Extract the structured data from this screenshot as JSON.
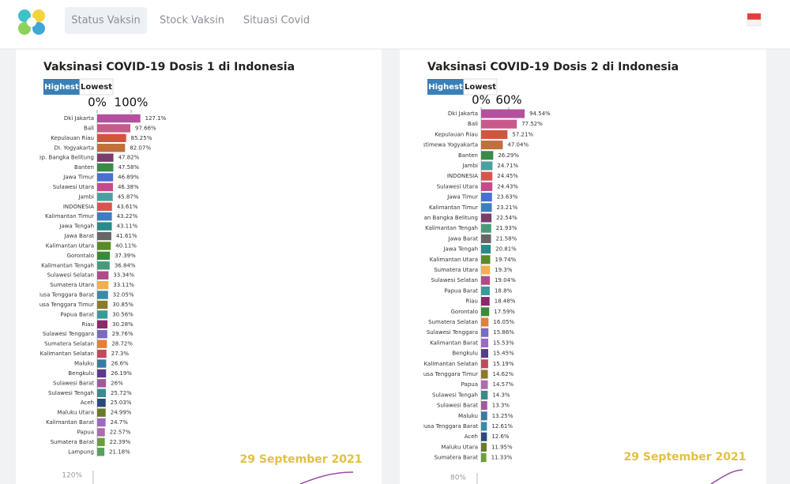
{
  "nav": {
    "items": [
      "Status Vaksin",
      "Stock Vaksin",
      "Situasi Covid"
    ]
  },
  "chart_data": [
    {
      "type": "bar",
      "orientation": "horizontal",
      "title": "Vaksinasi COVID-19 Dosis 1 di Indonesia",
      "buttons": [
        "Highest",
        "Lowest"
      ],
      "categories": [
        "Dki Jakarta",
        "Bali",
        "Kepulauan Riau",
        "DI. Yogyakarta",
        "Kep. Bangka Belitung",
        "Banten",
        "Jawa Timur",
        "Sulawesi Utara",
        "Jambi",
        "INDONESIA",
        "Kalimantan Timur",
        "Jawa Tengah",
        "Jawa Barat",
        "Kalimantan Utara",
        "Gorontalo",
        "Kalimantan Tengah",
        "Sulawesi Selatan",
        "Sumatera Utara",
        "Nusa Tenggara Barat",
        "Nusa Tenggara Timur",
        "Papua Barat",
        "Riau",
        "Sulawesi Tenggara",
        "Sumatera Selatan",
        "Kalimantan Selatan",
        "Maluku",
        "Bengkulu",
        "Sulawesi Barat",
        "Sulawesi Tengah",
        "Aceh",
        "Maluku Utara",
        "Kalimantan Barat",
        "Papua",
        "Sumatera Barat",
        "Lampung"
      ],
      "values": [
        127.1,
        97.66,
        85.25,
        82.07,
        47.82,
        47.58,
        46.89,
        46.38,
        45.87,
        43.61,
        43.22,
        43.11,
        41.61,
        40.11,
        37.39,
        36.84,
        33.34,
        33.11,
        32.05,
        30.85,
        30.56,
        30.28,
        29.76,
        28.72,
        27.3,
        26.6,
        26.19,
        26,
        25.72,
        25.03,
        24.99,
        24.7,
        22.57,
        22.39,
        21.18
      ],
      "value_labels": [
        "127.1%",
        "97.66%",
        "85.25%",
        "82.07%",
        "47.82%",
        "47.58%",
        "46.89%",
        "46.38%",
        "45.87%",
        "43.61%",
        "43.22%",
        "43.11%",
        "41.61%",
        "40.11%",
        "37.39%",
        "36.84%",
        "33.34%",
        "33.11%",
        "32.05%",
        "30.85%",
        "30.56%",
        "30.28%",
        "29.76%",
        "28.72%",
        "27.3%",
        "26.6%",
        "26.19%",
        "26%",
        "25.72%",
        "25.03%",
        "24.99%",
        "24.7%",
        "22.57%",
        "22.39%",
        "21.18%"
      ],
      "colors": [
        "#b5509e",
        "#c85a8a",
        "#d2543f",
        "#c0703a",
        "#7a3d6e",
        "#3a8a4a",
        "#4a6fd0",
        "#c64a8c",
        "#4aa0a0",
        "#d9534f",
        "#3a7fc0",
        "#2a8a8a",
        "#666666",
        "#5a8a2a",
        "#3a8a3a",
        "#4a9a7a",
        "#b04a8a",
        "#f0b050",
        "#3a8aaa",
        "#8a7a2a",
        "#3a9a9a",
        "#8a2a6a",
        "#7a6ac0",
        "#e0803a",
        "#c04a5a",
        "#3a7aa0",
        "#5a3a8a",
        "#a05a9a",
        "#3a8a8a",
        "#2a4a7a",
        "#6a7a2a",
        "#9a6ac0",
        "#b06ab0",
        "#6aa03a",
        "#5aa05a"
      ],
      "xlim": [
        0,
        130
      ],
      "xticks": [
        {
          "value": 0,
          "label": "0%"
        },
        {
          "value": 100,
          "label": "100%"
        }
      ],
      "date": "29 September 2021",
      "trend_label": "120%"
    },
    {
      "type": "bar",
      "orientation": "horizontal",
      "title": "Vaksinasi COVID-19 Dosis 2 di Indonesia",
      "buttons": [
        "Highest",
        "Lowest"
      ],
      "categories": [
        "Dki Jakarta",
        "Bali",
        "Kepulauan Riau",
        "Daerah Istimewa Yogyakarta",
        "Banten",
        "Jambi",
        "INDONESIA",
        "Sulawesi Utara",
        "Jawa Timur",
        "Kalimantan Timur",
        "Kepulauan Bangka Belitung",
        "Kalimantan Tengah",
        "Jawa Barat",
        "Jawa Tengah",
        "Kalimantan Utara",
        "Sumatera Utara",
        "Sulawesi Selatan",
        "Papua Barat",
        "Riau",
        "Gorontalo",
        "Sumatera Selatan",
        "Sulawesi Tenggara",
        "Kalimantan Barat",
        "Bengkulu",
        "Kalimantan Selatan",
        "Nusa Tenggara Timur",
        "Papua",
        "Sulawesi Tengah",
        "Sulawesi Barat",
        "Maluku",
        "Nusa Tenggara Barat",
        "Aceh",
        "Maluku Utara",
        "Sumatera Barat"
      ],
      "values": [
        94.54,
        77.52,
        57.21,
        47.04,
        26.29,
        24.71,
        24.45,
        24.43,
        23.63,
        23.21,
        22.54,
        21.93,
        21.58,
        20.81,
        19.74,
        19.3,
        19.04,
        18.8,
        18.48,
        17.59,
        16.05,
        15.86,
        15.53,
        15.45,
        15.19,
        14.62,
        14.57,
        14.3,
        13.3,
        13.25,
        12.61,
        12.6,
        11.95,
        11.33
      ],
      "value_labels": [
        "94.54%",
        "77.52%",
        "57.21%",
        "47.04%",
        "26.29%",
        "24.71%",
        "24.45%",
        "24.43%",
        "23.63%",
        "23.21%",
        "22.54%",
        "21.93%",
        "21.58%",
        "20.81%",
        "19.74%",
        "19.3%",
        "19.04%",
        "18.8%",
        "18.48%",
        "17.59%",
        "16.05%",
        "15.86%",
        "15.53%",
        "15.45%",
        "15.19%",
        "14.62%",
        "14.57%",
        "14.3%",
        "13.3%",
        "13.25%",
        "12.61%",
        "12.6%",
        "11.95%",
        "11.33%"
      ],
      "colors": [
        "#b5509e",
        "#c85a8a",
        "#d2543f",
        "#c0703a",
        "#3a8a4a",
        "#4aa0a0",
        "#d9534f",
        "#c64a8c",
        "#4a6fd0",
        "#3a7fc0",
        "#7a3d6e",
        "#4a9a7a",
        "#666666",
        "#2a8a8a",
        "#5a8a2a",
        "#f0b050",
        "#b04a8a",
        "#3a9a9a",
        "#8a2a6a",
        "#3a8a3a",
        "#e0803a",
        "#7a6ac0",
        "#9a6ac0",
        "#5a3a8a",
        "#c04a5a",
        "#8a7a2a",
        "#b06ab0",
        "#3a8a8a",
        "#a05a9a",
        "#3a7aa0",
        "#3a8aaa",
        "#2a4a7a",
        "#6a7a2a",
        "#6aa03a"
      ],
      "xlim": [
        0,
        95
      ],
      "xticks": [
        {
          "value": 0,
          "label": "0%"
        },
        {
          "value": 60,
          "label": "60%"
        }
      ],
      "date": "29 September 2021",
      "trend_label": "80%"
    }
  ]
}
